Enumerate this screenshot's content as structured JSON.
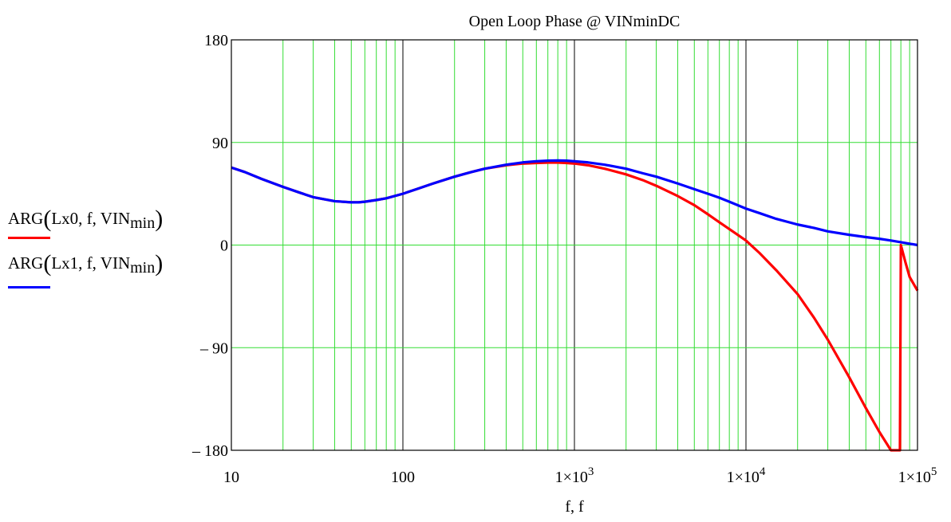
{
  "chart_data": {
    "type": "line",
    "title": "Open Loop Phase @ VINminDC",
    "xlabel": "f, f",
    "ylabel": "",
    "xscale": "log",
    "xlim": [
      10,
      100000
    ],
    "ylim": [
      -180,
      180
    ],
    "x_ticks": [
      {
        "value": 10,
        "mant": "10",
        "exp": ""
      },
      {
        "value": 100,
        "mant": "100",
        "exp": ""
      },
      {
        "value": 1000,
        "mant": "1×10",
        "exp": "3"
      },
      {
        "value": 10000,
        "mant": "1×10",
        "exp": "4"
      },
      {
        "value": 100000,
        "mant": "1×10",
        "exp": "5"
      }
    ],
    "y_ticks": [
      {
        "value": 180,
        "label": "180"
      },
      {
        "value": 90,
        "label": "90"
      },
      {
        "value": 0,
        "label": "0"
      },
      {
        "value": -90,
        "label": "– 90"
      },
      {
        "value": -180,
        "label": "– 180"
      }
    ],
    "grid": true,
    "legend_position": "left",
    "series": [
      {
        "name_parts": {
          "fn": "ARG",
          "args": "Lx0, f, VIN",
          "sub": "min"
        },
        "color": "#ff0000",
        "x": [
          10,
          12,
          15,
          20,
          25,
          30,
          40,
          50,
          55,
          60,
          70,
          80,
          100,
          120,
          150,
          200,
          250,
          300,
          400,
          500,
          600,
          700,
          800,
          900,
          1000,
          1200,
          1500,
          2000,
          2500,
          3000,
          4000,
          5000,
          6000,
          7000,
          8000,
          10000,
          12000,
          15000,
          20000,
          25000,
          30000,
          40000,
          50000,
          60000,
          70000,
          75000,
          79000,
          80000,
          85000,
          90000,
          100000
        ],
        "y": [
          68,
          64,
          58,
          51,
          46,
          42,
          38.5,
          37.5,
          37.5,
          38,
          39.5,
          41,
          45,
          49,
          54,
          60,
          64,
          67,
          70,
          71.5,
          72,
          72.3,
          72.3,
          72,
          71.5,
          70,
          67,
          62,
          57,
          52,
          43,
          35,
          27,
          20,
          14,
          4,
          -7,
          -22,
          -43,
          -64,
          -83,
          -116,
          -143,
          -164,
          -180,
          -190,
          -200,
          0,
          -15,
          -28,
          -40
        ]
      },
      {
        "name_parts": {
          "fn": "ARG",
          "args": "Lx1, f, VIN",
          "sub": "min"
        },
        "color": "#0000ff",
        "x": [
          10,
          12,
          15,
          20,
          25,
          30,
          40,
          50,
          55,
          60,
          70,
          80,
          100,
          120,
          150,
          200,
          250,
          300,
          400,
          500,
          600,
          700,
          800,
          900,
          1000,
          1200,
          1500,
          2000,
          2500,
          3000,
          4000,
          5000,
          6000,
          7000,
          8000,
          10000,
          12000,
          15000,
          20000,
          25000,
          30000,
          40000,
          50000,
          60000,
          70000,
          80000,
          100000
        ],
        "y": [
          68,
          64,
          58,
          51,
          46,
          42,
          38.5,
          37.5,
          37.5,
          38,
          39.5,
          41,
          45,
          49,
          54,
          60,
          64,
          67,
          70.5,
          72.5,
          73.5,
          74,
          74.2,
          74,
          73.5,
          72.5,
          70.5,
          67,
          63,
          60,
          54,
          49,
          45,
          41.5,
          38,
          32,
          28,
          23,
          18,
          15,
          12,
          9,
          7,
          5.5,
          4,
          2.5,
          0
        ]
      }
    ]
  }
}
